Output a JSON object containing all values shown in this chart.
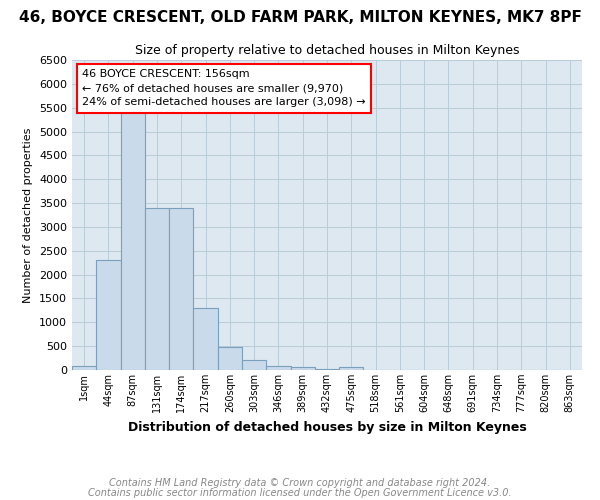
{
  "title": "46, BOYCE CRESCENT, OLD FARM PARK, MILTON KEYNES, MK7 8PF",
  "subtitle": "Size of property relative to detached houses in Milton Keynes",
  "xlabel": "Distribution of detached houses by size in Milton Keynes",
  "ylabel": "Number of detached properties",
  "annotation_title": "46 BOYCE CRESCENT: 156sqm",
  "annotation_line1": "← 76% of detached houses are smaller (9,970)",
  "annotation_line2": "24% of semi-detached houses are larger (3,098) →",
  "footer_line1": "Contains HM Land Registry data © Crown copyright and database right 2024.",
  "footer_line2": "Contains public sector information licensed under the Open Government Licence v3.0.",
  "bin_labels": [
    "1sqm",
    "44sqm",
    "87sqm",
    "131sqm",
    "174sqm",
    "217sqm",
    "260sqm",
    "303sqm",
    "346sqm",
    "389sqm",
    "432sqm",
    "475sqm",
    "518sqm",
    "561sqm",
    "604sqm",
    "648sqm",
    "691sqm",
    "734sqm",
    "777sqm",
    "820sqm",
    "863sqm"
  ],
  "bar_values": [
    75,
    2300,
    5400,
    3400,
    3400,
    1300,
    480,
    200,
    90,
    60,
    30,
    60,
    0,
    0,
    0,
    0,
    0,
    0,
    0,
    0,
    0
  ],
  "bar_color": "#c9daea",
  "bar_edge_color": "#7aa0be",
  "ylim": [
    0,
    6500
  ],
  "yticks": [
    0,
    500,
    1000,
    1500,
    2000,
    2500,
    3000,
    3500,
    4000,
    4500,
    5000,
    5500,
    6000,
    6500
  ],
  "bg_color": "#ffffff",
  "plot_bg_color": "#dde8f0",
  "grid_color": "#b8cdd8",
  "title_fontsize": 11,
  "subtitle_fontsize": 9,
  "annotation_fontsize": 8,
  "footer_fontsize": 7
}
